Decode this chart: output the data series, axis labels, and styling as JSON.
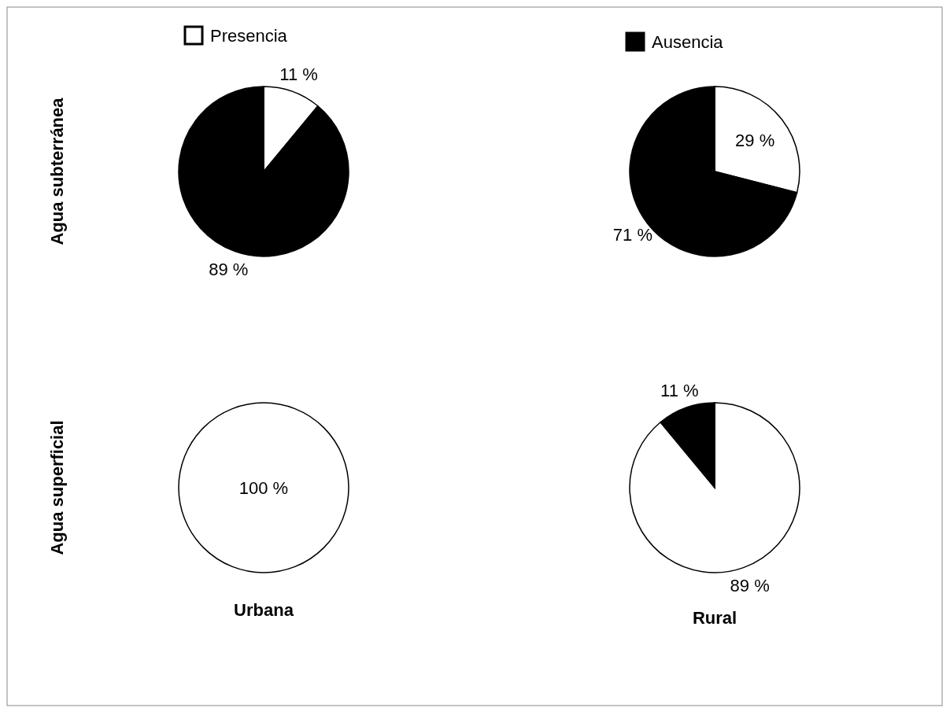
{
  "chart_data": [
    {
      "type": "pie",
      "ylabel": "Agua subterránea",
      "categories": [
        "Presencia",
        "Ausencia"
      ],
      "values": [
        11,
        89
      ],
      "colors": [
        "#ffffff",
        "#000000"
      ],
      "value_labels": [
        "11 %",
        "89 %"
      ],
      "legend": "top"
    },
    {
      "type": "pie",
      "categories": [
        null,
        null
      ],
      "values": [
        29,
        71
      ],
      "colors": [
        "#ffffff",
        "#000000"
      ],
      "value_labels": [
        "29 %",
        "71 %"
      ]
    },
    {
      "type": "pie",
      "ylabel": "Agua superficial",
      "xlabel": "Urbana",
      "categories": [
        null,
        null
      ],
      "values": [
        100,
        0
      ],
      "colors": [
        "#ffffff",
        "#000000"
      ],
      "value_labels": [
        "100 %",
        null
      ]
    },
    {
      "type": "pie",
      "xlabel": "Rural",
      "categories": [
        null,
        null
      ],
      "values": [
        89,
        11
      ],
      "colors": [
        "#ffffff",
        "#000000"
      ],
      "value_labels": [
        "89 %",
        "11 %"
      ]
    }
  ]
}
